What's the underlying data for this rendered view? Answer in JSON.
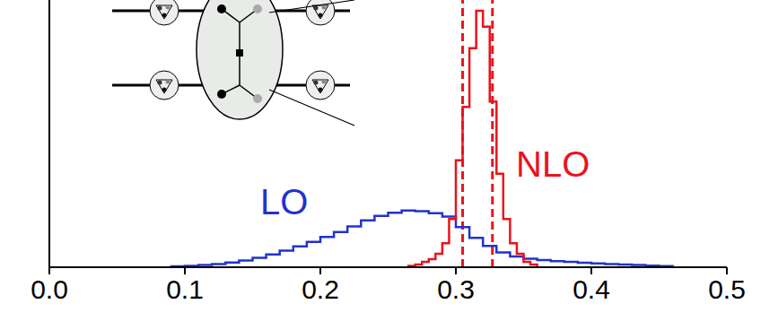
{
  "chart_data": {
    "type": "histogram",
    "xlim": [
      0,
      0.5
    ],
    "xticks": [
      {
        "value": 0,
        "label": "0.0"
      },
      0.1,
      0.2,
      0.3,
      0.4,
      0.5
    ],
    "ylim": [
      0,
      100
    ],
    "yticks": [],
    "tick_labels": "x",
    "grid": false,
    "series": [
      {
        "name": "LO",
        "color": "#2233cc",
        "bins": [
          0.09,
          0.1,
          0.11,
          0.12,
          0.13,
          0.14,
          0.15,
          0.16,
          0.17,
          0.18,
          0.19,
          0.2,
          0.21,
          0.22,
          0.23,
          0.24,
          0.25,
          0.26,
          0.27,
          0.28,
          0.29,
          0.3,
          0.31,
          0.32,
          0.33,
          0.34,
          0.35,
          0.36,
          0.37,
          0.38,
          0.39,
          0.4,
          0.41,
          0.42,
          0.43,
          0.44,
          0.45,
          0.46
        ],
        "counts": [
          0.3,
          0.5,
          0.8,
          1.2,
          1.8,
          2.5,
          3.5,
          4.8,
          6.2,
          7.8,
          9.5,
          11.3,
          13.2,
          15.3,
          17.5,
          19.2,
          20.4,
          21.2,
          21.0,
          20.2,
          19.0,
          15,
          11,
          8,
          5.5,
          4,
          3.2,
          2.7,
          2.3,
          2,
          1.7,
          1.4,
          1.2,
          1,
          0.8,
          0.6,
          0.4
        ]
      },
      {
        "name": "NLO",
        "color": "#e8141c",
        "bins": [
          0.265,
          0.27,
          0.275,
          0.28,
          0.285,
          0.29,
          0.295,
          0.3,
          0.305,
          0.31,
          0.315,
          0.32,
          0.325,
          0.33,
          0.335,
          0.34,
          0.345,
          0.35,
          0.355,
          0.36
        ],
        "counts": [
          0.5,
          1,
          2,
          3,
          5,
          9,
          18,
          40,
          60,
          82,
          96,
          90,
          62,
          35,
          18,
          9,
          5,
          2,
          1
        ]
      }
    ],
    "reference_lines": [
      {
        "value": 0.305,
        "color": "#e8141c",
        "line_style": "dashed"
      },
      {
        "value": 0.327,
        "color": "#e8141c",
        "line_style": "dashed"
      }
    ]
  }
}
